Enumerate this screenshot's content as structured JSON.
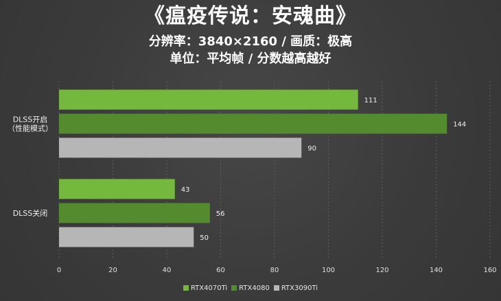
{
  "title": "《瘟疫传说：安魂曲》",
  "subtitle_lines": [
    "分辨率：3840×2160 / 画质：极高",
    "单位：平均帧 / 分数越高越好"
  ],
  "colors": {
    "RTX4070Ti": "#74b93d",
    "RTX4080": "#558b2f",
    "RTX3090Ti": "#b6b6b6"
  },
  "chart_data": {
    "type": "bar",
    "orientation": "horizontal",
    "categories": [
      "DLSS开启\n（性能模式）",
      "DLSS关闭"
    ],
    "series": [
      {
        "name": "RTX4070Ti",
        "values": [
          111,
          43
        ]
      },
      {
        "name": "RTX4080",
        "values": [
          144,
          56
        ]
      },
      {
        "name": "RTX3090Ti",
        "values": [
          90,
          50
        ]
      }
    ],
    "xlim": [
      0,
      160
    ],
    "xticks": [
      0,
      20,
      40,
      60,
      80,
      100,
      120,
      140,
      160
    ],
    "grid": true,
    "legend_position": "bottom"
  }
}
